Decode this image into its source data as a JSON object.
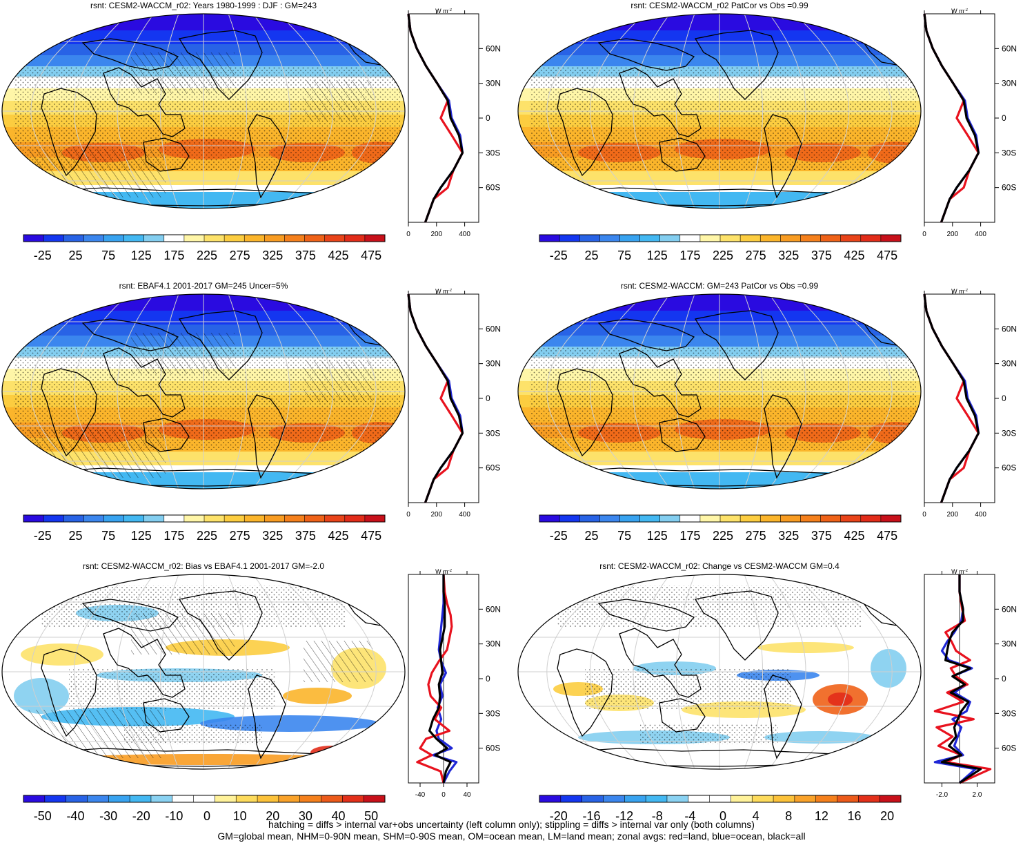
{
  "footer": {
    "line1": "hatching = diffs > internal var+obs uncertainty (left column only); stippling = diffs > internal var only (both columns)",
    "line2": "GM=global mean, NHM=0-90N mean, SHM=0-90S mean, OM=ocean mean, LM=land mean; zonal avgs: red=land, blue=ocean, black=all"
  },
  "colors": {
    "land": "#e8121e",
    "ocean": "#1f27d6",
    "all": "#000000"
  },
  "panels": [
    {
      "id": "p1",
      "title": "rsnt: CESM2-WACCM_r02: Years 1980-1999 : DJF : GM=243",
      "kind": "abs",
      "hatch": true,
      "stipple": true,
      "colorbar": {
        "labels": [
          "-25",
          "25",
          "75",
          "125",
          "175",
          "225",
          "275",
          "325",
          "375",
          "425",
          "475"
        ]
      },
      "zonal": {
        "unit_base": "W m",
        "unit_exp": "-2",
        "xticks": [
          "0",
          "200",
          "400"
        ],
        "xlim": [
          0,
          500
        ],
        "lat_labels": [
          "60N",
          "30N",
          "0",
          "30S",
          "60S"
        ]
      }
    },
    {
      "id": "p2",
      "title": "rsnt: CESM2-WACCM_r02 PatCor vs Obs =0.99",
      "kind": "abs",
      "hatch": false,
      "stipple": true,
      "colorbar": {
        "labels": [
          "-25",
          "25",
          "75",
          "125",
          "175",
          "225",
          "275",
          "325",
          "375",
          "425",
          "475"
        ]
      },
      "zonal": {
        "unit_base": "W m",
        "unit_exp": "-2",
        "xticks": [
          "0",
          "200",
          "400"
        ],
        "xlim": [
          0,
          500
        ],
        "lat_labels": [
          "60N",
          "30N",
          "0",
          "30S",
          "60S"
        ]
      }
    },
    {
      "id": "p3",
      "title": "rsnt: EBAF4.1 2001-2017 GM=245 Uncer=5%",
      "kind": "abs",
      "hatch": true,
      "stipple": true,
      "colorbar": {
        "labels": [
          "-25",
          "25",
          "75",
          "125",
          "175",
          "225",
          "275",
          "325",
          "375",
          "425",
          "475"
        ]
      },
      "zonal": {
        "unit_base": "W m",
        "unit_exp": "-2",
        "xticks": [
          "0",
          "200",
          "400"
        ],
        "xlim": [
          0,
          500
        ],
        "lat_labels": [
          "60N",
          "30N",
          "0",
          "30S",
          "60S"
        ]
      }
    },
    {
      "id": "p4",
      "title": "rsnt: CESM2-WACCM: GM=243 PatCor vs Obs =0.99",
      "kind": "abs",
      "hatch": false,
      "stipple": true,
      "colorbar": {
        "labels": [
          "-25",
          "25",
          "75",
          "125",
          "175",
          "225",
          "275",
          "325",
          "375",
          "425",
          "475"
        ]
      },
      "zonal": {
        "unit_base": "W m",
        "unit_exp": "-2",
        "xticks": [
          "0",
          "200",
          "400"
        ],
        "xlim": [
          0,
          500
        ],
        "lat_labels": [
          "60N",
          "30N",
          "0",
          "30S",
          "60S"
        ]
      }
    },
    {
      "id": "p5",
      "title": "rsnt: CESM2-WACCM_r02: Bias vs EBAF4.1 2001-2017 GM=-2.0",
      "kind": "bias",
      "hatch": true,
      "stipple": true,
      "colorbar": {
        "labels": [
          "-50",
          "-40",
          "-30",
          "-20",
          "-10",
          "0",
          "10",
          "20",
          "30",
          "40",
          "50"
        ]
      },
      "zonal": {
        "unit_base": "W m",
        "unit_exp": "-2",
        "xticks": [
          "-40",
          "0",
          "40"
        ],
        "xlim": [
          -60,
          60
        ],
        "lat_labels": [
          "60N",
          "30N",
          "0",
          "30S",
          "60S"
        ]
      }
    },
    {
      "id": "p6",
      "title": "rsnt: CESM2-WACCM_r02: Change vs CESM2-WACCM GM=0.4",
      "kind": "change",
      "hatch": false,
      "stipple": true,
      "colorbar": {
        "labels": [
          "-20",
          "-16",
          "-12",
          "-8",
          "-4",
          "0",
          "4",
          "8",
          "12",
          "16",
          "20"
        ]
      },
      "zonal": {
        "unit_base": "W m",
        "unit_exp": "-2",
        "xticks": [
          "-2.0",
          "2.0"
        ],
        "xlim": [
          -4,
          4
        ],
        "lat_labels": [
          "60N",
          "30N",
          "0",
          "30S",
          "60S"
        ]
      }
    }
  ]
}
